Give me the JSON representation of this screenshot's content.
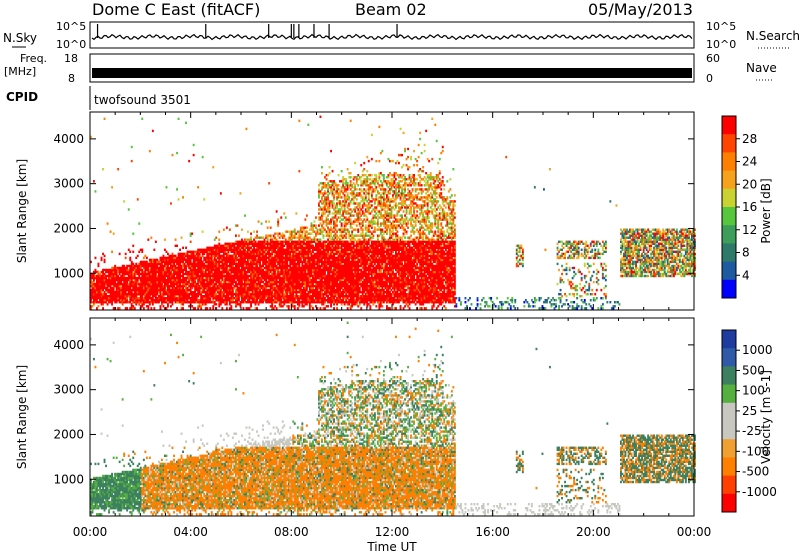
{
  "header": {
    "station": "Dome C East (fitACF)",
    "beam": "Beam 02",
    "date": "05/May/2013"
  },
  "top_panels": {
    "nsky_label": "N.Sky",
    "nsky_ticks": [
      "10^5",
      "10^0"
    ],
    "nsearch_label": "N.Search",
    "nsearch_ticks": [
      "10^5",
      "10^0"
    ],
    "freq_label": "Freq.",
    "freq_unit": "[MHz]",
    "freq_ticks": [
      "18",
      "8"
    ],
    "nave_label": "Nave",
    "nave_ticks": [
      "60",
      "0"
    ],
    "cpid_label": "CPID",
    "cpid_value": "twofsound 3501"
  },
  "chart_data": [
    {
      "type": "heatmap",
      "name": "power",
      "ylabel": "Slant Range [km]",
      "xlabel": "",
      "xlim": [
        0,
        24
      ],
      "ylim": [
        180,
        4600
      ],
      "xticks": [
        0,
        4,
        8,
        12,
        16,
        20,
        24
      ],
      "yticks": [
        1000,
        2000,
        3000,
        4000
      ],
      "colorbar": {
        "label": "Power [dB]",
        "ticks": [
          "28",
          "24",
          "20",
          "16",
          "12",
          "8",
          "4"
        ],
        "colors": [
          "#ff0000",
          "#ff4500",
          "#ff7f00",
          "#f7a21c",
          "#c8d230",
          "#56c63c",
          "#3c9e5a",
          "#2e7a6a",
          "#1e5aa0",
          "#0000ff"
        ]
      }
    },
    {
      "type": "heatmap",
      "name": "velocity",
      "ylabel": "Slant Range [km]",
      "xlabel": "Time UT",
      "xlim": [
        0,
        24
      ],
      "ylim": [
        180,
        4600
      ],
      "xticks": [
        "00:00",
        "04:00",
        "08:00",
        "12:00",
        "16:00",
        "20:00",
        "00:00"
      ],
      "yticks": [
        1000,
        2000,
        3000,
        4000
      ],
      "colorbar": {
        "label": "Velocity [m s-1]",
        "ticks": [
          "1000",
          "500",
          "100",
          "25",
          "-25",
          "-100",
          "-500",
          "-1000"
        ],
        "colors": [
          "#1e3ca0",
          "#2e5aa8",
          "#3c8060",
          "#56b040",
          "#c8c8c0",
          "#c8c8c0",
          "#f0a030",
          "#ff7f00",
          "#ff4000",
          "#ff0000"
        ]
      }
    }
  ]
}
